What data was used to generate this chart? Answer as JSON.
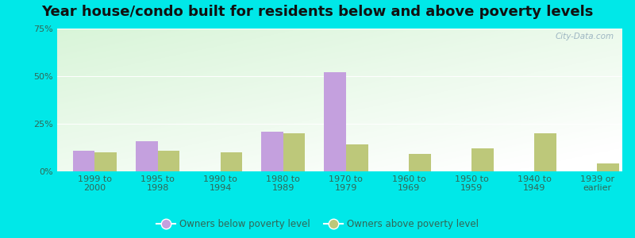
{
  "title": "Year house/condo built for residents below and above poverty levels",
  "categories": [
    "1999 to\n2000",
    "1995 to\n1998",
    "1990 to\n1994",
    "1980 to\n1989",
    "1970 to\n1979",
    "1960 to\n1969",
    "1950 to\n1959",
    "1940 to\n1949",
    "1939 or\nearlier"
  ],
  "below_poverty": [
    11,
    16,
    0,
    21,
    52,
    0,
    0,
    0,
    0
  ],
  "above_poverty": [
    10,
    11,
    10,
    20,
    14,
    9,
    12,
    20,
    4
  ],
  "below_color": "#c4a0de",
  "above_color": "#bdc87a",
  "bar_width": 0.35,
  "ylim": [
    0,
    75
  ],
  "yticks": [
    0,
    25,
    50,
    75
  ],
  "ytick_labels": [
    "0%",
    "25%",
    "50%",
    "75%"
  ],
  "outer_bg": "#00e8e8",
  "legend_below": "Owners below poverty level",
  "legend_above": "Owners above poverty level",
  "watermark": "City-Data.com",
  "title_fontsize": 13,
  "tick_fontsize": 8,
  "label_color": "#336655"
}
